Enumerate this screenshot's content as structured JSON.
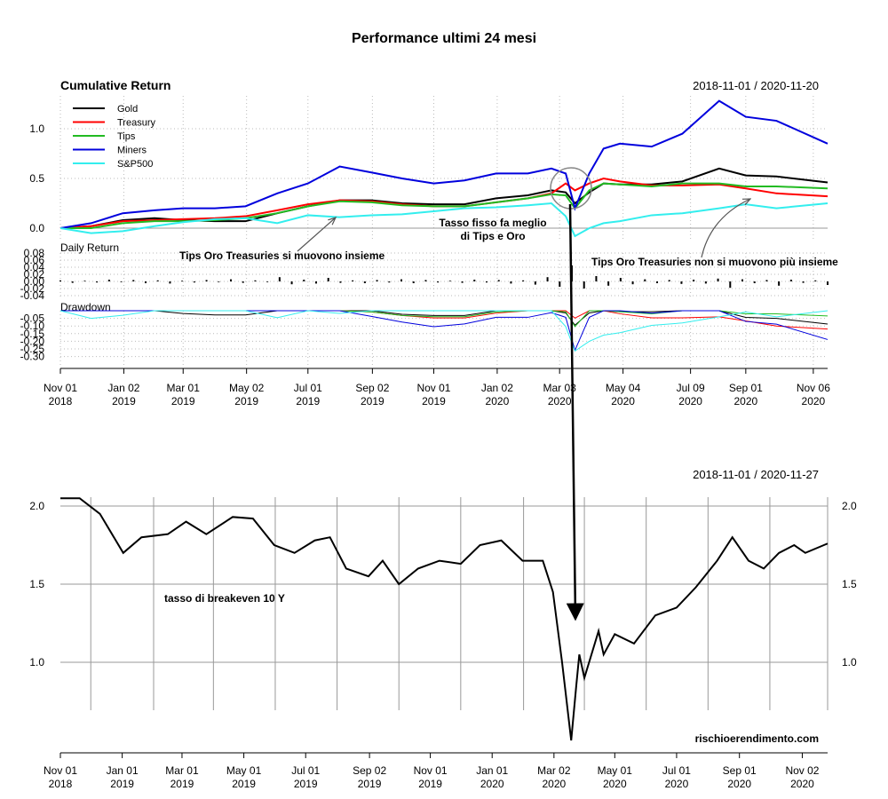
{
  "title": "Performance ultimi 24 mesi",
  "chart_data": [
    {
      "type": "line",
      "title": "Cumulative Return",
      "date_range": "2018-11-01 / 2020-11-20",
      "ylim": [
        -0.1,
        1.3
      ],
      "yticks": [
        0.0,
        0.5,
        1.0
      ],
      "x_tick_labels": [
        [
          "Nov 01",
          "2018",
          "2018-11-01"
        ],
        [
          "Jan 02",
          "2019",
          "2019-01-02"
        ],
        [
          "Mar 01",
          "2019",
          "2019-03-01"
        ],
        [
          "May 02",
          "2019",
          "2019-05-02"
        ],
        [
          "Jul 01",
          "2019",
          "2019-07-01"
        ],
        [
          "Sep 02",
          "2019",
          "2019-09-02"
        ],
        [
          "Nov 01",
          "2019",
          "2019-11-01"
        ],
        [
          "Jan 02",
          "2020",
          "2020-01-02"
        ],
        [
          "Mar 03",
          "2020",
          "2020-03-03"
        ],
        [
          "May 04",
          "2020",
          "2020-05-04"
        ],
        [
          "Jul 09",
          "2020",
          "2020-07-09"
        ],
        [
          "Sep 01",
          "2020",
          "2020-09-01"
        ],
        [
          "Nov 06",
          "2020",
          "2020-11-06"
        ]
      ],
      "legend_position": "top-left",
      "x": [
        "2018-11-01",
        "2018-12-01",
        "2019-01-01",
        "2019-02-01",
        "2019-03-01",
        "2019-04-01",
        "2019-05-01",
        "2019-06-01",
        "2019-07-01",
        "2019-08-01",
        "2019-09-01",
        "2019-10-01",
        "2019-11-01",
        "2019-12-01",
        "2020-01-01",
        "2020-02-01",
        "2020-02-24",
        "2020-03-09",
        "2020-03-18",
        "2020-04-01",
        "2020-04-15",
        "2020-05-01",
        "2020-06-01",
        "2020-07-01",
        "2020-08-06",
        "2020-09-01",
        "2020-10-01",
        "2020-11-20"
      ],
      "series": [
        {
          "name": "Gold",
          "color": "#000000",
          "values": [
            0,
            0.02,
            0.08,
            0.1,
            0.08,
            0.07,
            0.07,
            0.15,
            0.22,
            0.28,
            0.28,
            0.25,
            0.24,
            0.24,
            0.3,
            0.33,
            0.38,
            0.36,
            0.25,
            0.36,
            0.45,
            0.44,
            0.44,
            0.47,
            0.6,
            0.53,
            0.52,
            0.46
          ]
        },
        {
          "name": "Treasury",
          "color": "#ff0000",
          "values": [
            0,
            0.02,
            0.07,
            0.08,
            0.09,
            0.1,
            0.12,
            0.18,
            0.24,
            0.28,
            0.27,
            0.24,
            0.22,
            0.22,
            0.26,
            0.3,
            0.35,
            0.45,
            0.38,
            0.45,
            0.5,
            0.47,
            0.43,
            0.43,
            0.44,
            0.4,
            0.35,
            0.32
          ]
        },
        {
          "name": "Tips",
          "color": "#22bb22",
          "values": [
            0,
            0.0,
            0.05,
            0.07,
            0.07,
            0.08,
            0.1,
            0.15,
            0.22,
            0.27,
            0.26,
            0.23,
            0.22,
            0.22,
            0.26,
            0.3,
            0.34,
            0.33,
            0.2,
            0.38,
            0.45,
            0.44,
            0.42,
            0.45,
            0.45,
            0.42,
            0.42,
            0.4
          ]
        },
        {
          "name": "Miners",
          "color": "#0000dd",
          "values": [
            0,
            0.05,
            0.15,
            0.18,
            0.2,
            0.2,
            0.22,
            0.35,
            0.45,
            0.62,
            0.56,
            0.5,
            0.45,
            0.48,
            0.55,
            0.55,
            0.6,
            0.55,
            0.2,
            0.55,
            0.8,
            0.85,
            0.82,
            0.95,
            1.28,
            1.12,
            1.08,
            0.85
          ]
        },
        {
          "name": "S&P500",
          "color": "#33eeee",
          "values": [
            0,
            -0.05,
            -0.03,
            0.02,
            0.06,
            0.09,
            0.1,
            0.05,
            0.13,
            0.11,
            0.13,
            0.14,
            0.17,
            0.2,
            0.21,
            0.23,
            0.25,
            0.12,
            -0.08,
            0.0,
            0.05,
            0.07,
            0.13,
            0.15,
            0.2,
            0.24,
            0.2,
            0.25
          ]
        }
      ],
      "daily_return": {
        "label": "Daily Return",
        "yticks": [
          0.08,
          0.06,
          0.04,
          0.02,
          0.0,
          -0.02,
          -0.04
        ],
        "values": [
          0.003,
          -0.004,
          0.002,
          -0.003,
          0.005,
          -0.002,
          0.004,
          -0.005,
          0.003,
          -0.006,
          0.002,
          -0.003,
          0.004,
          -0.002,
          0.006,
          -0.004,
          0.003,
          -0.002,
          0.012,
          -0.008,
          0.005,
          -0.006,
          0.01,
          -0.004,
          0.003,
          -0.005,
          0.004,
          -0.003,
          0.006,
          -0.005,
          0.004,
          -0.003,
          0.002,
          -0.004,
          0.005,
          -0.003,
          0.004,
          -0.006,
          0.003,
          -0.009,
          0.012,
          -0.015,
          0.045,
          -0.02,
          0.015,
          -0.012,
          0.01,
          -0.008,
          0.006,
          -0.005,
          0.004,
          -0.007,
          0.005,
          -0.006,
          0.008,
          -0.018,
          0.006,
          -0.005,
          0.004,
          -0.012,
          0.005,
          -0.004,
          0.003,
          -0.01
        ]
      },
      "drawdown": {
        "label": "Drawdown",
        "yticks": [
          -0.05,
          -0.1,
          -0.15,
          -0.2,
          -0.25,
          -0.3
        ]
      }
    },
    {
      "type": "line",
      "label": "tasso di breakeven 10 Y",
      "date_range": "2018-11-01 / 2020-11-27",
      "ylim": [
        0.45,
        2.1
      ],
      "yticks": [
        1.0,
        1.5,
        2.0
      ],
      "x_tick_labels": [
        [
          "Nov 01",
          "2018",
          "2018-11-01"
        ],
        [
          "Jan 01",
          "2019",
          "2019-01-01"
        ],
        [
          "Mar 01",
          "2019",
          "2019-03-01"
        ],
        [
          "May 01",
          "2019",
          "2019-05-01"
        ],
        [
          "Jul 01",
          "2019",
          "2019-07-01"
        ],
        [
          "Sep 02",
          "2019",
          "2019-09-02"
        ],
        [
          "Nov 01",
          "2019",
          "2019-11-01"
        ],
        [
          "Jan 01",
          "2020",
          "2020-01-01"
        ],
        [
          "Mar 02",
          "2020",
          "2020-03-02"
        ],
        [
          "May 01",
          "2020",
          "2020-05-01"
        ],
        [
          "Jul 01",
          "2020",
          "2020-07-01"
        ],
        [
          "Sep 01",
          "2020",
          "2020-09-01"
        ],
        [
          "Nov 02",
          "2020",
          "2020-11-02"
        ]
      ],
      "x": [
        "2018-11-01",
        "2018-11-20",
        "2018-12-10",
        "2019-01-02",
        "2019-01-20",
        "2019-02-15",
        "2019-03-05",
        "2019-03-25",
        "2019-04-20",
        "2019-05-10",
        "2019-05-31",
        "2019-06-20",
        "2019-07-10",
        "2019-07-25",
        "2019-08-10",
        "2019-09-01",
        "2019-09-15",
        "2019-10-01",
        "2019-10-20",
        "2019-11-10",
        "2019-12-01",
        "2019-12-20",
        "2020-01-10",
        "2020-01-31",
        "2020-02-20",
        "2020-03-01",
        "2020-03-10",
        "2020-03-19",
        "2020-03-24",
        "2020-03-27",
        "2020-04-01",
        "2020-04-15",
        "2020-04-20",
        "2020-05-01",
        "2020-05-20",
        "2020-06-10",
        "2020-07-01",
        "2020-07-20",
        "2020-08-10",
        "2020-08-25",
        "2020-09-10",
        "2020-09-25",
        "2020-10-10",
        "2020-10-25",
        "2020-11-05",
        "2020-11-27"
      ],
      "values": [
        2.05,
        2.05,
        1.95,
        1.7,
        1.8,
        1.82,
        1.9,
        1.82,
        1.93,
        1.92,
        1.75,
        1.7,
        1.78,
        1.8,
        1.6,
        1.55,
        1.65,
        1.5,
        1.6,
        1.65,
        1.63,
        1.75,
        1.78,
        1.65,
        1.65,
        1.45,
        1.0,
        0.5,
        0.85,
        1.05,
        0.9,
        1.2,
        1.05,
        1.18,
        1.12,
        1.3,
        1.35,
        1.48,
        1.65,
        1.8,
        1.65,
        1.6,
        1.7,
        1.75,
        1.7,
        1.76
      ]
    }
  ],
  "annotations": {
    "a1_line1": "Tasso fisso fa meglio",
    "a1_line2": "di Tips e Oro",
    "a2": "Tips Oro Treasuries si muovono insieme",
    "a3": "Tips Oro Treasuries non si muovono più insieme",
    "watermark": "rischioerendimento.com"
  }
}
